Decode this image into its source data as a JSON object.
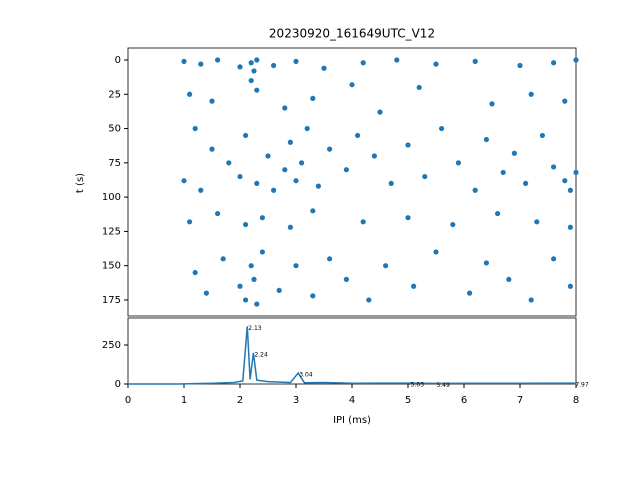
{
  "chart_data": [
    {
      "type": "scatter",
      "title": "20230920_161649UTC_V12",
      "y_label": "t (s)",
      "color": "#1f77b4",
      "xlim": [
        0,
        8
      ],
      "ylim": [
        186.7,
        -8.75
      ],
      "yticks": [
        0,
        25,
        50,
        75,
        100,
        125,
        150,
        175
      ],
      "x": [
        1.0,
        1.3,
        1.6,
        2.0,
        2.2,
        2.25,
        2.3,
        2.6,
        3.0,
        3.5,
        4.2,
        4.8,
        5.5,
        6.2,
        7.0,
        7.6,
        8.0,
        1.1,
        1.5,
        2.2,
        2.3,
        2.8,
        3.3,
        4.0,
        4.5,
        5.2,
        6.5,
        7.2,
        7.8,
        1.0,
        1.2,
        1.3,
        1.5,
        1.8,
        2.0,
        2.1,
        2.3,
        2.5,
        2.6,
        2.8,
        2.9,
        3.0,
        3.1,
        3.2,
        3.4,
        3.6,
        3.9,
        4.1,
        4.4,
        4.7,
        5.0,
        5.3,
        5.6,
        5.9,
        6.2,
        6.4,
        6.7,
        6.9,
        7.1,
        7.4,
        7.6,
        7.8,
        7.9,
        8.0,
        1.1,
        1.6,
        2.1,
        2.4,
        2.9,
        3.3,
        4.2,
        5.0,
        5.8,
        6.6,
        7.3,
        7.9,
        1.2,
        1.4,
        1.7,
        2.0,
        2.1,
        2.2,
        2.25,
        2.3,
        2.4,
        2.7,
        3.0,
        3.3,
        3.6,
        3.9,
        4.3,
        4.6,
        5.1,
        5.5,
        6.1,
        6.4,
        6.8,
        7.2,
        7.6,
        7.9
      ],
      "values": [
        1,
        3,
        0,
        5,
        2,
        8,
        0,
        4,
        1,
        6,
        2,
        0,
        3,
        1,
        4,
        2,
        0,
        25,
        30,
        15,
        22,
        35,
        28,
        18,
        38,
        20,
        32,
        25,
        30,
        88,
        50,
        95,
        65,
        75,
        85,
        55,
        90,
        70,
        95,
        80,
        60,
        88,
        75,
        50,
        92,
        65,
        80,
        55,
        70,
        90,
        62,
        85,
        50,
        75,
        95,
        58,
        82,
        68,
        90,
        55,
        78,
        88,
        95,
        82,
        118,
        112,
        120,
        115,
        122,
        110,
        118,
        115,
        120,
        112,
        118,
        122,
        155,
        170,
        145,
        165,
        175,
        150,
        160,
        178,
        140,
        168,
        150,
        172,
        145,
        160,
        175,
        150,
        165,
        140,
        170,
        148,
        160,
        175,
        145,
        165
      ]
    },
    {
      "type": "line",
      "x_label": "IPI (ms)",
      "color": "#1f77b4",
      "xlim": [
        0,
        8
      ],
      "ylim": [
        0,
        423
      ],
      "xticks": [
        0,
        1,
        2,
        3,
        4,
        5,
        6,
        7,
        8
      ],
      "yticks": [
        0,
        250
      ],
      "x": [
        0,
        0.9,
        1.5,
        1.9,
        2.05,
        2.13,
        2.18,
        2.24,
        2.3,
        2.5,
        2.9,
        3.04,
        3.15,
        3.5,
        4,
        5.03,
        5.49,
        6.2,
        7,
        7.97,
        8
      ],
      "values": [
        0,
        0,
        5,
        10,
        20,
        370,
        30,
        200,
        25,
        15,
        10,
        70,
        8,
        10,
        5,
        6,
        4,
        5,
        5,
        6,
        0
      ],
      "peaks": {
        "x": [
          2.13,
          2.24,
          3.04,
          5.03,
          5.49,
          7.97
        ],
        "values": [
          370,
          200,
          70,
          6,
          4,
          6
        ]
      }
    }
  ]
}
